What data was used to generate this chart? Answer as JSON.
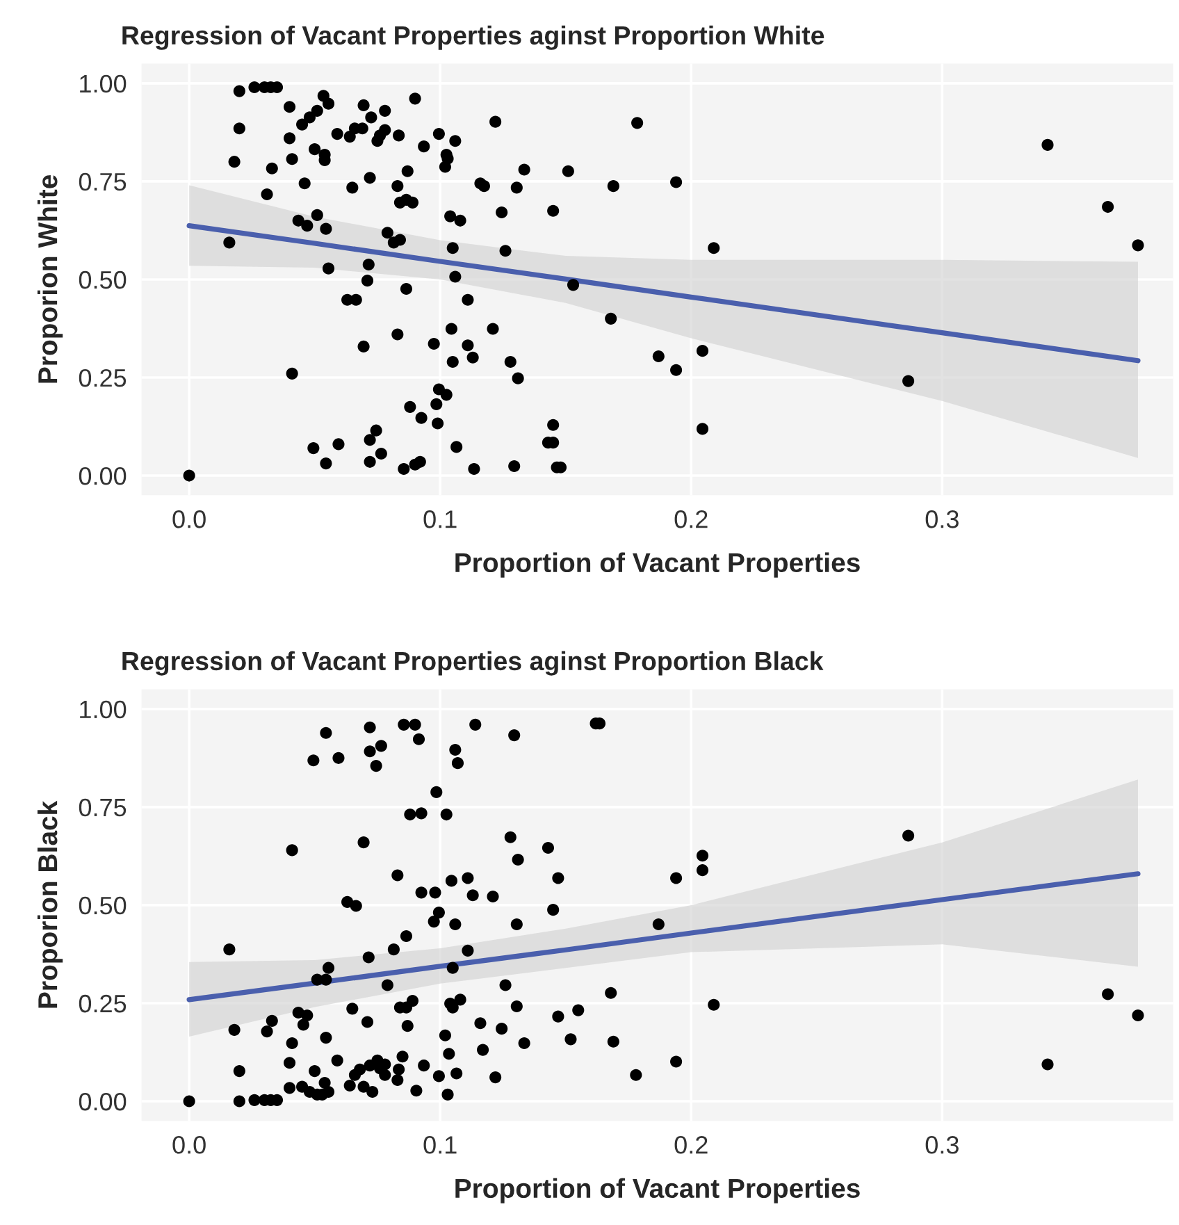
{
  "chart_data": [
    {
      "type": "scatter",
      "title": "Regression of Vacant Properties aginst Proportion White",
      "xlabel": "Proportion of Vacant Properties",
      "ylabel": "Proporion White",
      "xlim": [
        -0.019,
        0.392
      ],
      "ylim": [
        -0.05,
        1.05
      ],
      "xticks": [
        {
          "value": 0,
          "label": "0.0"
        },
        0.1,
        0.2,
        0.3
      ],
      "yticks": [
        {
          "value": 0,
          "label": "0.00"
        },
        {
          "value": 0.25,
          "label": "0.25"
        },
        {
          "value": 0.5,
          "label": "0.50"
        },
        {
          "value": 0.75,
          "label": "0.75"
        },
        {
          "value": 1,
          "label": "1.00"
        }
      ],
      "grid": true,
      "series": [
        {
          "color": "#000000",
          "marker": "circle",
          "x": [
            0,
            0.016,
            0.018,
            0.02,
            0.02,
            0.026,
            0.03,
            0.0325,
            0.035,
            0.031,
            0.033,
            0.04,
            0.04,
            0.041,
            0.041,
            0.0435,
            0.046,
            0.045,
            0.048,
            0.051,
            0.047,
            0.051,
            0.05,
            0.054,
            0.054,
            0.0535,
            0.0555,
            0.0545,
            0.0555,
            0.0495,
            0.0545,
            0.0595,
            0.059,
            0.064,
            0.066,
            0.069,
            0.065,
            0.063,
            0.0665,
            0.0695,
            0.0695,
            0.071,
            0.0715,
            0.072,
            0.0725,
            0.072,
            0.0765,
            0.072,
            0.0745,
            0.075,
            0.076,
            0.078,
            0.078,
            0.083,
            0.0835,
            0.079,
            0.0815,
            0.084,
            0.084,
            0.0865,
            0.089,
            0.087,
            0.0865,
            0.083,
            0.09,
            0.0855,
            0.09,
            0.092,
            0.088,
            0.0925,
            0.0935,
            0.0975,
            0.0985,
            0.099,
            0.0995,
            0.1025,
            0.0995,
            0.1025,
            0.103,
            0.102,
            0.106,
            0.104,
            0.108,
            0.105,
            0.106,
            0.1045,
            0.105,
            0.111,
            0.111,
            0.113,
            0.1065,
            0.1135,
            0.116,
            0.1175,
            0.122,
            0.1245,
            0.126,
            0.121,
            0.128,
            0.131,
            0.1295,
            0.1305,
            0.1335,
            0.151,
            0.145,
            0.153,
            0.145,
            0.145,
            0.143,
            0.168,
            0.169,
            0.1785,
            0.187,
            0.194,
            0.194,
            0.2045,
            0.2045,
            0.209,
            0.1465,
            0.148,
            0.2865,
            0.342,
            0.366,
            0.378
          ],
          "values": [
            0,
            0.594,
            0.8,
            0.885,
            0.98,
            0.99,
            0.99,
            0.99,
            0.99,
            0.717,
            0.783,
            0.94,
            0.86,
            0.807,
            0.26,
            0.65,
            0.745,
            0.895,
            0.913,
            0.93,
            0.637,
            0.664,
            0.832,
            0.818,
            0.804,
            0.968,
            0.948,
            0.629,
            0.528,
            0.07,
            0.031,
            0.08,
            0.871,
            0.864,
            0.885,
            0.885,
            0.734,
            0.448,
            0.448,
            0.944,
            0.329,
            0.497,
            0.538,
            0.759,
            0.913,
            0.035,
            0.056,
            0.091,
            0.115,
            0.853,
            0.867,
            0.881,
            0.93,
            0.738,
            0.867,
            0.619,
            0.594,
            0.601,
            0.696,
            0.703,
            0.696,
            0.776,
            0.476,
            0.36,
            0.961,
            0.017,
            0.028,
            0.035,
            0.175,
            0.147,
            0.839,
            0.336,
            0.182,
            0.133,
            0.22,
            0.206,
            0.871,
            0.818,
            0.808,
            0.787,
            0.853,
            0.661,
            0.65,
            0.58,
            0.507,
            0.374,
            0.29,
            0.448,
            0.332,
            0.301,
            0.073,
            0.017,
            0.745,
            0.738,
            0.902,
            0.671,
            0.573,
            0.374,
            0.29,
            0.248,
            0.024,
            0.734,
            0.78,
            0.776,
            0.675,
            0.486,
            0.129,
            0.084,
            0.084,
            0.4,
            0.738,
            0.899,
            0.304,
            0.269,
            0.748,
            0.318,
            0.119,
            0.58,
            0.021,
            0.021,
            0.241,
            0.843,
            0.685,
            0.587
          ]
        },
        {
          "type": "line",
          "color": "#4a5fad",
          "x": [
            0,
            0.05,
            0.1,
            0.15,
            0.2,
            0.3,
            0.378
          ],
          "values": [
            0.637,
            0.592,
            0.546,
            0.501,
            0.455,
            0.364,
            0.293
          ],
          "lower": [
            0.535,
            0.53,
            0.5,
            0.44,
            0.35,
            0.19,
            0.045
          ],
          "upper": [
            0.74,
            0.66,
            0.6,
            0.56,
            0.55,
            0.55,
            0.545
          ]
        }
      ]
    },
    {
      "type": "scatter",
      "title": "Regression of Vacant Properties aginst Proportion Black",
      "xlabel": "Proportion of Vacant Properties",
      "ylabel": "Proporion Black",
      "xlim": [
        -0.019,
        0.392
      ],
      "ylim": [
        -0.05,
        1.05
      ],
      "xticks": [
        {
          "value": 0,
          "label": "0.0"
        },
        0.1,
        0.2,
        0.3
      ],
      "yticks": [
        {
          "value": 0,
          "label": "0.00"
        },
        {
          "value": 0.25,
          "label": "0.25"
        },
        {
          "value": 0.5,
          "label": "0.50"
        },
        {
          "value": 0.75,
          "label": "0.75"
        },
        {
          "value": 1,
          "label": "1.00"
        }
      ],
      "grid": true,
      "series": [
        {
          "color": "#000000",
          "marker": "circle",
          "x": [
            0,
            0.016,
            0.018,
            0.02,
            0.02,
            0.026,
            0.03,
            0.0325,
            0.035,
            0.031,
            0.033,
            0.04,
            0.04,
            0.041,
            0.041,
            0.0435,
            0.047,
            0.0455,
            0.045,
            0.048,
            0.051,
            0.053,
            0.054,
            0.0555,
            0.05,
            0.051,
            0.0545,
            0.0555,
            0.0545,
            0.0495,
            0.0545,
            0.0595,
            0.059,
            0.064,
            0.066,
            0.068,
            0.0695,
            0.073,
            0.065,
            0.063,
            0.0665,
            0.0695,
            0.071,
            0.0715,
            0.072,
            0.072,
            0.0745,
            0.0765,
            0.072,
            0.075,
            0.076,
            0.078,
            0.078,
            0.079,
            0.0815,
            0.083,
            0.083,
            0.0835,
            0.085,
            0.084,
            0.0865,
            0.089,
            0.087,
            0.0865,
            0.0855,
            0.09,
            0.0915,
            0.088,
            0.0925,
            0.0925,
            0.0905,
            0.0935,
            0.0975,
            0.0995,
            0.098,
            0.0985,
            0.1025,
            0.1045,
            0.106,
            0.105,
            0.104,
            0.105,
            0.108,
            0.102,
            0.1035,
            0.0995,
            0.103,
            0.1065,
            0.106,
            0.107,
            0.111,
            0.113,
            0.111,
            0.114,
            0.116,
            0.117,
            0.121,
            0.126,
            0.1245,
            0.122,
            0.128,
            0.131,
            0.1305,
            0.1305,
            0.1295,
            0.1335,
            0.143,
            0.147,
            0.145,
            0.147,
            0.152,
            0.155,
            0.168,
            0.169,
            0.178,
            0.162,
            0.1635,
            0.187,
            0.194,
            0.194,
            0.2045,
            0.2045,
            0.209,
            0.2865,
            0.342,
            0.366,
            0.378
          ],
          "values": [
            0,
            0.387,
            0.182,
            0.077,
            0.0,
            0.003,
            0.003,
            0.003,
            0.003,
            0.178,
            0.205,
            0.034,
            0.098,
            0.148,
            0.64,
            0.226,
            0.219,
            0.195,
            0.037,
            0.024,
            0.017,
            0.017,
            0.047,
            0.024,
            0.077,
            0.31,
            0.31,
            0.34,
            0.162,
            0.869,
            0.939,
            0.875,
            0.104,
            0.04,
            0.067,
            0.081,
            0.037,
            0.024,
            0.236,
            0.508,
            0.498,
            0.66,
            0.202,
            0.367,
            0.953,
            0.892,
            0.855,
            0.906,
            0.091,
            0.104,
            0.084,
            0.067,
            0.094,
            0.296,
            0.387,
            0.576,
            0.054,
            0.081,
            0.114,
            0.239,
            0.239,
            0.256,
            0.192,
            0.421,
            0.96,
            0.96,
            0.923,
            0.731,
            0.734,
            0.532,
            0.027,
            0.091,
            0.458,
            0.481,
            0.532,
            0.788,
            0.731,
            0.562,
            0.451,
            0.34,
            0.249,
            0.239,
            0.259,
            0.168,
            0.121,
            0.064,
            0.017,
            0.071,
            0.896,
            0.862,
            0.569,
            0.525,
            0.384,
            0.96,
            0.199,
            0.131,
            0.522,
            0.296,
            0.185,
            0.061,
            0.673,
            0.616,
            0.451,
            0.242,
            0.933,
            0.148,
            0.646,
            0.569,
            0.488,
            0.216,
            0.158,
            0.232,
            0.276,
            0.152,
            0.067,
            0.963,
            0.963,
            0.451,
            0.569,
            0.101,
            0.626,
            0.589,
            0.246,
            0.677,
            0.094,
            0.273,
            0.219
          ]
        },
        {
          "type": "line",
          "color": "#4a5fad",
          "x": [
            0,
            0.05,
            0.1,
            0.15,
            0.2,
            0.3,
            0.378
          ],
          "values": [
            0.259,
            0.301,
            0.344,
            0.386,
            0.429,
            0.514,
            0.58
          ],
          "lower": [
            0.165,
            0.24,
            0.3,
            0.34,
            0.38,
            0.4,
            0.343
          ],
          "upper": [
            0.355,
            0.36,
            0.39,
            0.44,
            0.5,
            0.66,
            0.82
          ]
        }
      ]
    }
  ]
}
